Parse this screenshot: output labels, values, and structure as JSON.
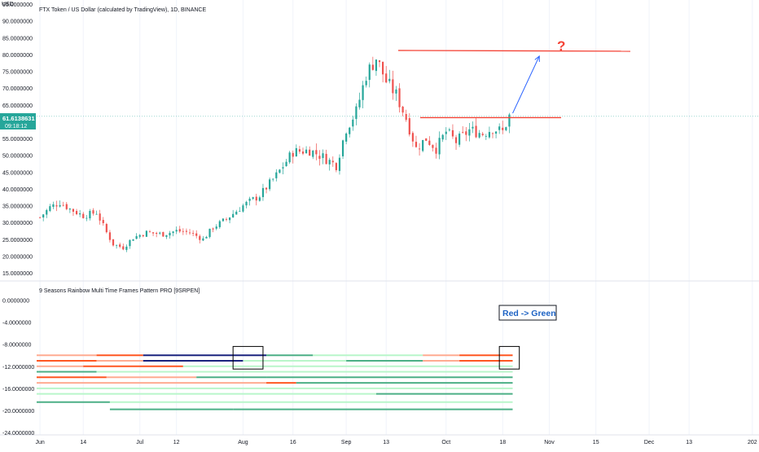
{
  "header": {
    "currency": "USD",
    "title": "FTX Token / US Dollar (calculated by TradingView), 1D, BINANCE"
  },
  "price_badge": {
    "price": "61.6138631",
    "countdown": "09:18:12",
    "color": "#26a69a"
  },
  "indicator": {
    "title": "9 Seasons Rainbow Multi Time Frames Pattern PRO [9SRPEN]"
  },
  "annotations": {
    "question": "?",
    "callout": "Red -> Green"
  },
  "colors": {
    "up": "#26a69a",
    "down": "#ef5350",
    "annotation_red": "#f44336",
    "arrow_blue": "#2962ff",
    "callout_blue": "#1e63c4",
    "lane_green_light": "#b9f6ca",
    "lane_green_dark": "#4caf86",
    "lane_red": "#ff5722",
    "lane_salmon": "#ffab91",
    "lane_navy": "#1a237e"
  },
  "price_axis": {
    "labels": [
      "95.0000000",
      "90.0000000",
      "85.0000000",
      "80.0000000",
      "75.0000000",
      "70.0000000",
      "65.0000000",
      "55.0000000",
      "50.0000000",
      "45.0000000",
      "40.0000000",
      "35.0000000",
      "30.0000000",
      "25.0000000",
      "20.0000000",
      "15.0000000"
    ],
    "values": [
      95,
      90,
      85,
      80,
      75,
      70,
      65,
      55,
      50,
      45,
      40,
      35,
      30,
      25,
      20,
      15
    ]
  },
  "indicator_axis": {
    "labels": [
      "0.0000000",
      "-4.0000000",
      "-8.0000000",
      "-12.0000000",
      "-16.0000000",
      "-20.0000000",
      "-24.0000000"
    ],
    "values": [
      0,
      -4,
      -8,
      -12,
      -16,
      -20,
      -24
    ]
  },
  "time_axis": {
    "labels": [
      "Jun",
      "14",
      "Jul",
      "12",
      "Aug",
      "16",
      "Sep",
      "13",
      "Oct",
      "18",
      "Nov",
      "15",
      "Dec",
      "13",
      "202"
    ]
  },
  "chart_data": [
    {
      "type": "candlestick",
      "title": "FTX Token / US Dollar (calculated by TradingView), 1D, BINANCE",
      "ylabel": "USD",
      "ylim": [
        15,
        95
      ],
      "x_range": [
        "2021-05-31",
        "2022-01-03"
      ],
      "series": [
        {
          "name": "FTTUSD",
          "points": [
            [
              "2021-06-01",
              31.5
            ],
            [
              "2021-06-04",
              34.5
            ],
            [
              "2021-06-07",
              36.0
            ],
            [
              "2021-06-10",
              34.0
            ],
            [
              "2021-06-14",
              32.0
            ],
            [
              "2021-06-18",
              33.0
            ],
            [
              "2021-06-21",
              27.0
            ],
            [
              "2021-06-23",
              23.5
            ],
            [
              "2021-06-26",
              22.5
            ],
            [
              "2021-06-29",
              25.5
            ],
            [
              "2021-07-03",
              27.0
            ],
            [
              "2021-07-08",
              26.5
            ],
            [
              "2021-07-12",
              27.5
            ],
            [
              "2021-07-16",
              27.0
            ],
            [
              "2021-07-20",
              25.0
            ],
            [
              "2021-07-23",
              28.5
            ],
            [
              "2021-07-27",
              31.0
            ],
            [
              "2021-08-01",
              35.0
            ],
            [
              "2021-08-06",
              38.0
            ],
            [
              "2021-08-11",
              44.0
            ],
            [
              "2021-08-16",
              51.0
            ],
            [
              "2021-08-21",
              51.5
            ],
            [
              "2021-08-25",
              49.5
            ],
            [
              "2021-08-29",
              47.0
            ],
            [
              "2021-09-01",
              58.0
            ],
            [
              "2021-09-04",
              63.0
            ],
            [
              "2021-09-07",
              74.0
            ],
            [
              "2021-09-10",
              79.0
            ],
            [
              "2021-09-13",
              72.0
            ],
            [
              "2021-09-16",
              68.0
            ],
            [
              "2021-09-19",
              61.0
            ],
            [
              "2021-09-22",
              52.0
            ],
            [
              "2021-09-25",
              55.0
            ],
            [
              "2021-09-28",
              52.0
            ],
            [
              "2021-10-01",
              57.0
            ],
            [
              "2021-10-04",
              54.0
            ],
            [
              "2021-10-08",
              57.5
            ],
            [
              "2021-10-12",
              56.5
            ],
            [
              "2021-10-15",
              58.0
            ],
            [
              "2021-10-18",
              57.0
            ],
            [
              "2021-10-20",
              61.6
            ]
          ]
        }
      ],
      "annotations": {
        "resistance_upper": 81.2,
        "resistance_lower": 61.2,
        "projection": {
          "from": [
            "2021-10-21",
            62.5
          ],
          "to": [
            "2021-10-29",
            79.5
          ]
        }
      }
    },
    {
      "type": "lanes",
      "title": "9 Seasons Rainbow Multi Time Frames Pattern PRO [9SRPEN]",
      "ylim": [
        -24,
        2
      ],
      "lanes": [
        {
          "y": -10.0,
          "segments": [
            [
              "2021-05-31",
              "2021-06-18",
              "salmon"
            ],
            [
              "2021-06-18",
              "2021-07-02",
              "red"
            ],
            [
              "2021-07-02",
              "2021-08-08",
              "navy"
            ],
            [
              "2021-08-08",
              "2021-08-22",
              "dark"
            ],
            [
              "2021-08-22",
              "2021-09-24",
              "light"
            ],
            [
              "2021-09-24",
              "2021-10-05",
              "salmon"
            ],
            [
              "2021-10-05",
              "2021-10-21",
              "red"
            ]
          ]
        },
        {
          "y": -11.0,
          "segments": [
            [
              "2021-05-31",
              "2021-06-18",
              "red"
            ],
            [
              "2021-06-18",
              "2021-07-02",
              "salmon"
            ],
            [
              "2021-07-02",
              "2021-08-01",
              "navy"
            ],
            [
              "2021-08-01",
              "2021-09-01",
              "light"
            ],
            [
              "2021-09-01",
              "2021-09-24",
              "dark"
            ],
            [
              "2021-09-24",
              "2021-10-05",
              "salmon"
            ],
            [
              "2021-10-05",
              "2021-10-21",
              "red"
            ]
          ]
        },
        {
          "y": -12.0,
          "segments": [
            [
              "2021-05-31",
              "2021-06-14",
              "salmon"
            ],
            [
              "2021-06-14",
              "2021-07-14",
              "red"
            ],
            [
              "2021-07-14",
              "2021-08-03",
              "light"
            ],
            [
              "2021-08-03",
              "2021-10-21",
              "light"
            ]
          ]
        },
        {
          "y": -13.0,
          "segments": [
            [
              "2021-05-31",
              "2021-06-18",
              "dark"
            ],
            [
              "2021-06-18",
              "2021-10-21",
              "light"
            ]
          ]
        },
        {
          "y": -14.0,
          "segments": [
            [
              "2021-05-31",
              "2021-06-21",
              "red"
            ],
            [
              "2021-06-21",
              "2021-07-18",
              "salmon"
            ],
            [
              "2021-07-18",
              "2021-08-08",
              "dark"
            ],
            [
              "2021-08-08",
              "2021-10-21",
              "dark"
            ]
          ]
        },
        {
          "y": -15.0,
          "segments": [
            [
              "2021-05-31",
              "2021-08-08",
              "salmon"
            ],
            [
              "2021-08-08",
              "2021-08-17",
              "red"
            ],
            [
              "2021-08-17",
              "2021-10-21",
              "dark"
            ]
          ]
        },
        {
          "y": -16.0,
          "segments": [
            [
              "2021-05-31",
              "2021-10-21",
              "light"
            ]
          ]
        },
        {
          "y": -17.0,
          "segments": [
            [
              "2021-05-31",
              "2021-09-10",
              "light"
            ],
            [
              "2021-09-10",
              "2021-10-21",
              "dark"
            ]
          ]
        },
        {
          "y": -18.5,
          "segments": [
            [
              "2021-05-31",
              "2021-06-22",
              "dark"
            ],
            [
              "2021-06-22",
              "2021-10-21",
              "light"
            ]
          ]
        },
        {
          "y": -19.8,
          "segments": [
            [
              "2021-06-22",
              "2021-07-29",
              "dark"
            ],
            [
              "2021-07-29",
              "2021-10-21",
              "dark"
            ]
          ]
        }
      ],
      "highlight_boxes": [
        {
          "from": "2021-07-29",
          "to": "2021-08-07",
          "y_top": -8.4,
          "y_bottom": -12.5
        },
        {
          "from": "2021-10-17",
          "to": "2021-10-23",
          "y_top": -8.4,
          "y_bottom": -12.5
        }
      ]
    }
  ]
}
